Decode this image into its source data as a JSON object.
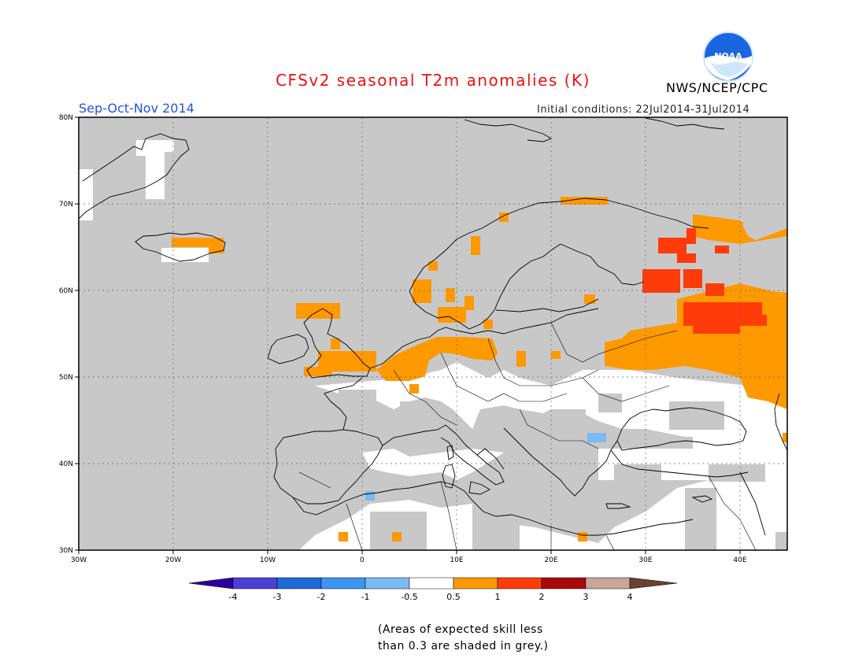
{
  "title": "CFSv2 seasonal T2m anomalies (K)",
  "agency": "NWS/NCEP/CPC",
  "logo_text": "NOAA",
  "season": "Sep-Oct-Nov 2014",
  "initial_conditions": "Initial conditions: 22Jul2014-31Jul2014",
  "map": {
    "lon_range": [
      -30,
      45
    ],
    "lat_range": [
      30,
      80
    ],
    "land_color": "#c8c8c8",
    "coast_color": "#000000",
    "lat_ticks": [
      "30N",
      "40N",
      "50N",
      "60N",
      "70N",
      "80N"
    ],
    "lon_ticks": [
      "30W",
      "20W",
      "10W",
      "0",
      "10E",
      "20E",
      "30E",
      "40E"
    ]
  },
  "colorbar": {
    "levels": [
      "-4",
      "-3",
      "-2",
      "-1",
      "-0.5",
      "0.5",
      "1",
      "2",
      "3",
      "4"
    ],
    "colors": [
      "#2b00a0",
      "#4b3fd8",
      "#1f6ad8",
      "#3c95f0",
      "#7bbaf2",
      "#ffffff",
      "#ff9900",
      "#ff3b0a",
      "#a80a0a",
      "#c9a698",
      "#6b4230"
    ]
  },
  "note_line1": "(Areas of expected skill less",
  "note_line2": "than 0.3 are shaded in grey.)"
}
